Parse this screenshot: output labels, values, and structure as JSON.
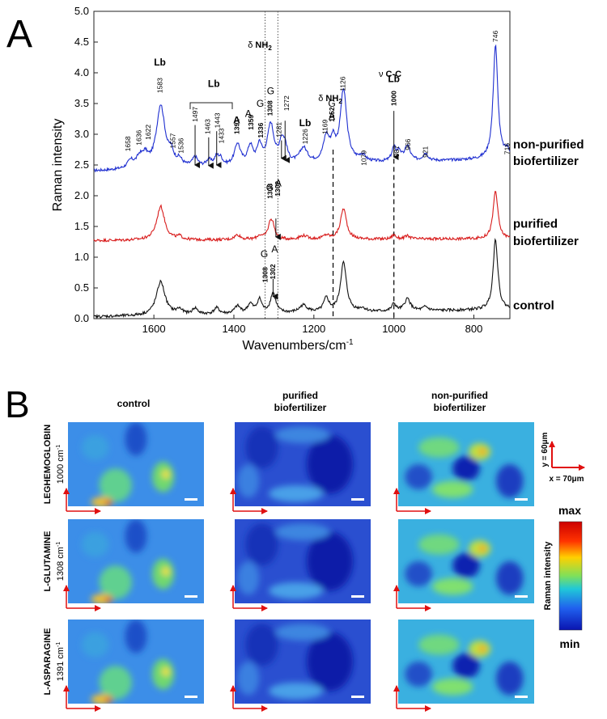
{
  "panel_a": {
    "letter": "A",
    "chart_data": {
      "type": "line",
      "xlabel": "Wavenumbers/cm",
      "xlabel_sup": "-1",
      "ylabel": "Raman intensity",
      "xlim": [
        1750,
        710
      ],
      "ylim": [
        0.0,
        5.0
      ],
      "x_ticks": [
        1600,
        1400,
        1200,
        1000,
        800
      ],
      "x_tick_labels": [
        "1600",
        "1400",
        "1200",
        "1000",
        "800"
      ],
      "y_ticks": [
        0.0,
        0.5,
        1.0,
        1.5,
        2.0,
        2.5,
        3.0,
        3.5,
        4.0,
        4.5,
        5.0
      ],
      "y_tick_labels": [
        "0.0",
        "0.5",
        "1.0",
        "1.5",
        "2.0",
        "2.5",
        "3.0",
        "3.5",
        "4.0",
        "4.5",
        "5.0"
      ],
      "grid": false,
      "series": [
        {
          "name": "non-purified biofertilizer",
          "color": "#1f2fd0",
          "baseline": 2.4,
          "end_value": 2.6,
          "peaks": [
            {
              "x": 1658,
              "h": 0.12,
              "w": 10
            },
            {
              "x": 1636,
              "h": 0.15,
              "w": 9
            },
            {
              "x": 1622,
              "h": 0.18,
              "w": 9
            },
            {
              "x": 1583,
              "h": 1.02,
              "w": 13
            },
            {
              "x": 1557,
              "h": 0.18,
              "w": 8
            },
            {
              "x": 1536,
              "h": 0.1,
              "w": 8
            },
            {
              "x": 1497,
              "h": 0.15,
              "w": 8
            },
            {
              "x": 1463,
              "h": 0.1,
              "w": 7
            },
            {
              "x": 1443,
              "h": 0.15,
              "w": 7
            },
            {
              "x": 1433,
              "h": 0.1,
              "w": 6
            },
            {
              "x": 1391,
              "h": 0.35,
              "w": 9
            },
            {
              "x": 1359,
              "h": 0.3,
              "w": 8
            },
            {
              "x": 1336,
              "h": 0.3,
              "w": 7
            },
            {
              "x": 1308,
              "h": 0.65,
              "w": 10
            },
            {
              "x": 1281,
              "h": 0.3,
              "w": 7
            },
            {
              "x": 1272,
              "h": 0.25,
              "w": 7
            },
            {
              "x": 1226,
              "h": 0.25,
              "w": 12
            },
            {
              "x": 1169,
              "h": 0.4,
              "w": 9
            },
            {
              "x": 1152,
              "h": 0.3,
              "w": 7
            },
            {
              "x": 1126,
              "h": 1.17,
              "w": 10
            },
            {
              "x": 1079,
              "h": 0.1,
              "w": 10
            },
            {
              "x": 1000,
              "h": 0.22,
              "w": 6
            },
            {
              "x": 987,
              "h": 0.15,
              "w": 6
            },
            {
              "x": 966,
              "h": 0.25,
              "w": 8
            },
            {
              "x": 921,
              "h": 0.12,
              "w": 8
            },
            {
              "x": 746,
              "h": 1.85,
              "w": 7
            },
            {
              "x": 716,
              "h": 0.12,
              "w": 7
            }
          ]
        },
        {
          "name": "purified biofertilizer",
          "color": "#d81b1b",
          "baseline": 1.27,
          "end_value": 1.3,
          "peaks": [
            {
              "x": 1583,
              "h": 0.55,
              "w": 12
            },
            {
              "x": 1536,
              "h": 0.05,
              "w": 8
            },
            {
              "x": 1391,
              "h": 0.08,
              "w": 9
            },
            {
              "x": 1336,
              "h": 0.06,
              "w": 7
            },
            {
              "x": 1308,
              "h": 0.28,
              "w": 8
            },
            {
              "x": 1302,
              "h": 0.1,
              "w": 6
            },
            {
              "x": 1226,
              "h": 0.06,
              "w": 12
            },
            {
              "x": 1169,
              "h": 0.06,
              "w": 9
            },
            {
              "x": 1126,
              "h": 0.5,
              "w": 9
            },
            {
              "x": 1000,
              "h": 0.07,
              "w": 6
            },
            {
              "x": 966,
              "h": 0.05,
              "w": 8
            },
            {
              "x": 746,
              "h": 0.78,
              "w": 7
            }
          ]
        },
        {
          "name": "control",
          "color": "#111111",
          "baseline": 0.03,
          "end_value": 0.15,
          "peaks": [
            {
              "x": 1583,
              "h": 0.55,
              "w": 13
            },
            {
              "x": 1536,
              "h": 0.08,
              "w": 9
            },
            {
              "x": 1497,
              "h": 0.1,
              "w": 8
            },
            {
              "x": 1443,
              "h": 0.1,
              "w": 8
            },
            {
              "x": 1391,
              "h": 0.12,
              "w": 9
            },
            {
              "x": 1359,
              "h": 0.15,
              "w": 8
            },
            {
              "x": 1336,
              "h": 0.22,
              "w": 7
            },
            {
              "x": 1302,
              "h": 0.33,
              "w": 8
            },
            {
              "x": 1226,
              "h": 0.12,
              "w": 12
            },
            {
              "x": 1169,
              "h": 0.22,
              "w": 8
            },
            {
              "x": 1126,
              "h": 0.8,
              "w": 9
            },
            {
              "x": 1079,
              "h": 0.05,
              "w": 10
            },
            {
              "x": 1000,
              "h": 0.12,
              "w": 6
            },
            {
              "x": 966,
              "h": 0.2,
              "w": 9
            },
            {
              "x": 921,
              "h": 0.06,
              "w": 8
            },
            {
              "x": 746,
              "h": 1.15,
              "w": 7
            }
          ]
        }
      ],
      "series_labels": [
        {
          "text": "non-purified",
          "y": 2.77
        },
        {
          "text": "biofertilizer",
          "y": 2.5
        },
        {
          "text": "purified",
          "y": 1.48
        },
        {
          "text": "biofertilizer",
          "y": 1.2
        },
        {
          "text": "control",
          "y": 0.15
        }
      ],
      "peak_labels": [
        {
          "text": "1658",
          "x": 1665,
          "y": 2.72
        },
        {
          "text": "1636",
          "x": 1638,
          "y": 2.82
        },
        {
          "text": "1622",
          "x": 1614,
          "y": 2.91
        },
        {
          "text": "1583",
          "x": 1585,
          "y": 3.67
        },
        {
          "text": "1557",
          "x": 1553,
          "y": 2.77
        },
        {
          "text": "1536",
          "x": 1532,
          "y": 2.69
        },
        {
          "text": "1497",
          "x": 1497,
          "y": 3.2
        },
        {
          "text": "1463",
          "x": 1466,
          "y": 3.0
        },
        {
          "text": "1443",
          "x": 1441,
          "y": 3.1
        },
        {
          "text": "1433",
          "x": 1431,
          "y": 2.85
        },
        {
          "text": "1391",
          "x": 1393,
          "y": 3.0
        },
        {
          "text": "1359",
          "x": 1357,
          "y": 3.07
        },
        {
          "text": "1336",
          "x": 1333,
          "y": 2.94
        },
        {
          "text": "1308",
          "x": 1310,
          "y": 3.3
        },
        {
          "text": "1281",
          "x": 1288,
          "y": 2.95
        },
        {
          "text": "1272",
          "x": 1268,
          "y": 3.38
        },
        {
          "text": "1226",
          "x": 1222,
          "y": 2.84
        },
        {
          "text": "1169",
          "x": 1172,
          "y": 3.0
        },
        {
          "text": "1152",
          "x": 1155,
          "y": 3.2
        },
        {
          "text": "1126",
          "x": 1128,
          "y": 3.7
        },
        {
          "text": "1079",
          "x": 1075,
          "y": 2.49
        },
        {
          "text": "1000",
          "x": 1000,
          "y": 3.46
        },
        {
          "text": "987",
          "x": 993,
          "y": 2.63
        },
        {
          "text": "966",
          "x": 965,
          "y": 2.74
        },
        {
          "text": "921",
          "x": 921,
          "y": 2.62
        },
        {
          "text": "746",
          "x": 746,
          "y": 4.5
        },
        {
          "text": "716",
          "x": 717,
          "y": 2.67
        },
        {
          "text": "1308",
          "x": 1310,
          "y": 1.95
        },
        {
          "text": "1302",
          "x": 1291,
          "y": 1.99
        },
        {
          "text": "1308",
          "x": 1322,
          "y": 0.59
        },
        {
          "text": "1302",
          "x": 1303,
          "y": 0.64
        }
      ],
      "annotations": [
        {
          "text": "Lb",
          "x": 1585,
          "y": 4.12,
          "bold": true,
          "size": 12
        },
        {
          "text": "Lb",
          "x": 1450,
          "y": 3.77,
          "bold": true,
          "size": 12
        },
        {
          "text": "A",
          "x": 1393,
          "y": 3.18,
          "bold": true,
          "size": 12
        },
        {
          "text": "A",
          "x": 1364,
          "y": 3.28,
          "bold": false,
          "size": 12
        },
        {
          "text": "G",
          "x": 1334,
          "y": 3.45,
          "bold": false,
          "size": 12
        },
        {
          "text": "G",
          "x": 1308,
          "y": 3.65,
          "bold": false,
          "size": 12
        },
        {
          "text": "Lb",
          "x": 1222,
          "y": 3.13,
          "bold": true,
          "size": 12
        },
        {
          "text": "G",
          "x": 1155,
          "y": 3.45,
          "bold": false,
          "size": 12
        },
        {
          "text": "A",
          "x": 1155,
          "y": 3.24,
          "bold": false,
          "size": 12
        },
        {
          "text": "Lb",
          "x": 1000,
          "y": 3.85,
          "bold": true,
          "size": 12
        },
        {
          "text": "G",
          "x": 1310,
          "y": 2.08,
          "bold": false,
          "size": 12
        },
        {
          "text": "A",
          "x": 1289,
          "y": 2.15,
          "bold": false,
          "size": 12
        },
        {
          "text": "G",
          "x": 1324,
          "y": 1.0,
          "bold": false,
          "size": 12
        },
        {
          "text": "A",
          "x": 1298,
          "y": 1.08,
          "bold": false,
          "size": 12
        }
      ],
      "group_labels": [
        {
          "text": "δ",
          "sub": "",
          "x": 1321,
          "y": 4.8
        },
        {
          "text": "δ",
          "x": 1176,
          "y": 3.56
        },
        {
          "text": "ν",
          "x": 1035,
          "y": 4.4
        }
      ],
      "group_label_texts": {
        "nh2_top": "NH",
        "nh2_top_sub": "2",
        "nh2_mid": "NH",
        "nh2_mid_sub": "2",
        "cc": "C-C"
      },
      "arrows": [
        {
          "x": 1497,
          "y1": 3.15,
          "y2": 2.5
        },
        {
          "x": 1463,
          "y1": 2.95,
          "y2": 2.49
        },
        {
          "x": 1443,
          "y1": 3.05,
          "y2": 2.5
        },
        {
          "x": 1281,
          "y1": 2.9,
          "y2": 2.61
        },
        {
          "x": 1272,
          "y1": 3.22,
          "y2": 2.58
        },
        {
          "x": 1000,
          "y1": 3.38,
          "y2": 2.63
        },
        {
          "x": 1295,
          "y1": 1.63,
          "y2": 1.33
        },
        {
          "x": 1302,
          "y1": 0.65,
          "y2": 0.36
        }
      ],
      "dotted_lines": [
        1322,
        1290
      ],
      "dashed_lines": [
        {
          "x": 1152,
          "y1": 2.75,
          "y2": 0.0
        },
        {
          "x": 1000,
          "y1": 2.6,
          "y2": 0.0
        }
      ]
    }
  },
  "panel_b": {
    "letter": "B",
    "columns": [
      "control",
      "purified\nbiofertilizer",
      "non-purified\nbiofertilizer"
    ],
    "rows": [
      {
        "name": "LEGHEMOGLOBIN",
        "wavenumber": "1000 cm",
        "unit_sup": "-1"
      },
      {
        "name": "L-GLUTAMINE",
        "wavenumber": "1308 cm",
        "unit_sup": "-1"
      },
      {
        "name": "L-ASPARAGINE",
        "wavenumber": "1391 cm",
        "unit_sup": "-1"
      }
    ],
    "scale_y": "y = 60μm",
    "scale_x": "x = 70μm",
    "colorbar": {
      "max": "max",
      "min": "min",
      "label": "Raman intensity"
    }
  }
}
